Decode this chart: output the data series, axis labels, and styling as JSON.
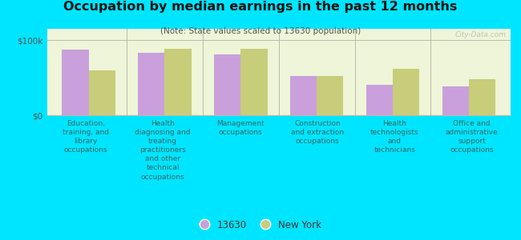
{
  "title": "Occupation by median earnings in the past 12 months",
  "subtitle": "(Note: State values scaled to 13630 population)",
  "categories": [
    "Education,\ntraining, and\nlibrary\noccupations",
    "Health\ndiagnosing and\ntreating\npractitioners\nand other\ntechnical\noccupations",
    "Management\noccupations",
    "Construction\nand extraction\noccupations",
    "Health\ntechnologists\nand\ntechnicians",
    "Office and\nadministrative\nsupport\noccupations"
  ],
  "values_13630": [
    87000,
    83000,
    81000,
    52000,
    40000,
    38000
  ],
  "values_ny": [
    60000,
    88000,
    88000,
    52000,
    62000,
    48000
  ],
  "color_13630": "#c9a0dc",
  "color_ny": "#c8cd7a",
  "ylim": [
    0,
    115000
  ],
  "yticks": [
    0,
    100000
  ],
  "ytick_labels": [
    "$0",
    "$100k"
  ],
  "bar_width": 0.35,
  "plot_bg": "#eef5d8",
  "outer_background": "#00e5ff",
  "legend_13630": "13630",
  "legend_ny": "New York",
  "watermark": "City-Data.com",
  "label_color": "#336666",
  "divider_color": "#bbbbaa",
  "label_fontsize": 6.5
}
